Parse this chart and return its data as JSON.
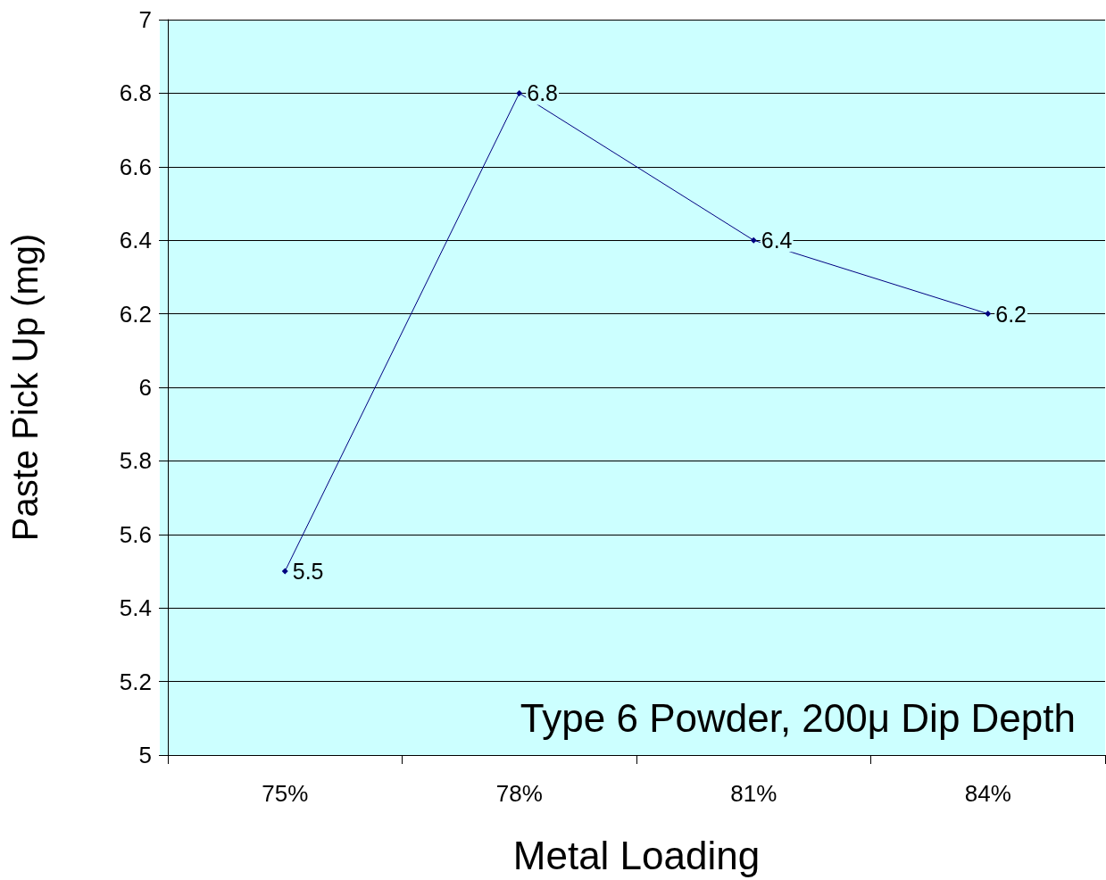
{
  "chart_data": {
    "type": "line",
    "xlabel": "Metal Loading",
    "ylabel": "Paste Pick Up (mg)",
    "categories": [
      "75%",
      "78%",
      "81%",
      "84%"
    ],
    "series": [
      {
        "color": "#000080",
        "values": [
          5.5,
          6.8,
          6.4,
          6.2
        ]
      }
    ],
    "ylim": [
      5,
      7
    ],
    "yticks": [
      5,
      5.2,
      5.4,
      5.6,
      5.8,
      6,
      6.2,
      6.4,
      6.6,
      6.8,
      7
    ],
    "grid": "y",
    "marker": "diamond",
    "line_style": "solid",
    "data_labels": true,
    "annotations": [
      "Type 6 Powder, 200μ Dip Depth"
    ]
  }
}
